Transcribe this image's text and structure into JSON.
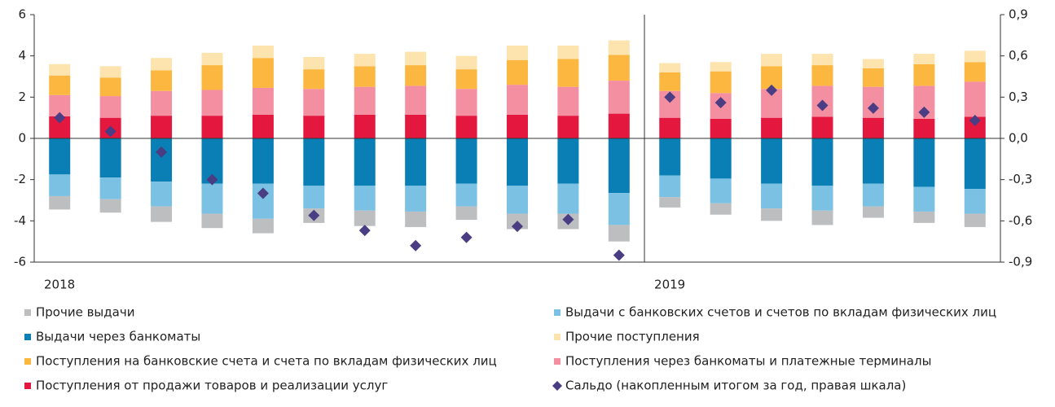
{
  "chart_data": {
    "type": "bar",
    "stacked": true,
    "categories": [
      "2018",
      null,
      null,
      null,
      null,
      null,
      null,
      null,
      null,
      null,
      null,
      null,
      "2019",
      null,
      null,
      null,
      null,
      null,
      null
    ],
    "ylim": [
      -6,
      6
    ],
    "yticks": [
      -6,
      -4,
      -2,
      0,
      2,
      4,
      6
    ],
    "y2lim": [
      -0.9,
      0.9
    ],
    "y2ticks": [
      {
        "value": -0.9,
        "label": "-0,9"
      },
      {
        "value": -0.6,
        "label": "-0,6"
      },
      {
        "value": -0.3,
        "label": "-0,3"
      },
      {
        "value": 0,
        "label": "0,0"
      },
      {
        "value": 0.3,
        "label": "0,3"
      },
      {
        "value": 0.6,
        "label": "0,6"
      },
      {
        "value": 0.9,
        "label": "0,9"
      }
    ],
    "grid": false,
    "series": [
      {
        "name": "Прочие выдачи",
        "color": "#bcbec0",
        "values": [
          -0.65,
          -0.65,
          -0.75,
          -0.7,
          -0.7,
          -0.7,
          -0.75,
          -0.75,
          -0.65,
          -0.75,
          -0.75,
          -0.8,
          -0.5,
          -0.55,
          -0.6,
          -0.7,
          -0.55,
          -0.55,
          -0.65
        ]
      },
      {
        "name": "Выдачи с банковских счетов и счетов по вкладам физических лиц",
        "color": "#7ac1e4",
        "values": [
          -1.05,
          -1.05,
          -1.2,
          -1.45,
          -1.7,
          -1.1,
          -1.2,
          -1.25,
          -1.1,
          -1.35,
          -1.45,
          -1.55,
          -1.05,
          -1.2,
          -1.2,
          -1.2,
          -1.1,
          -1.2,
          -1.2
        ]
      },
      {
        "name": "Выдачи через банкоматы",
        "color": "#0a7fb5",
        "values": [
          -1.75,
          -1.9,
          -2.1,
          -2.2,
          -2.2,
          -2.3,
          -2.3,
          -2.3,
          -2.2,
          -2.3,
          -2.2,
          -2.65,
          -1.8,
          -1.95,
          -2.2,
          -2.3,
          -2.2,
          -2.35,
          -2.45
        ]
      },
      {
        "name": "Прочие поступления",
        "color": "#fde3ad",
        "values": [
          0.55,
          0.55,
          0.6,
          0.6,
          0.6,
          0.6,
          0.6,
          0.65,
          0.65,
          0.7,
          0.65,
          0.7,
          0.45,
          0.45,
          0.6,
          0.55,
          0.45,
          0.5,
          0.55
        ]
      },
      {
        "name": "Поступления на банковские счета и счета по вкладам физических лиц",
        "color": "#fbb73f",
        "values": [
          0.95,
          0.9,
          1.0,
          1.2,
          1.45,
          0.95,
          1.0,
          1.0,
          0.95,
          1.2,
          1.35,
          1.25,
          0.9,
          1.05,
          1.1,
          1.0,
          0.9,
          1.05,
          0.95
        ]
      },
      {
        "name": "Поступления через банкоматы и платежные терминалы",
        "color": "#f48fa1",
        "values": [
          1.03,
          1.05,
          1.2,
          1.25,
          1.3,
          1.3,
          1.35,
          1.4,
          1.3,
          1.45,
          1.4,
          1.6,
          1.3,
          1.25,
          1.4,
          1.5,
          1.5,
          1.6,
          1.7
        ]
      },
      {
        "name": "Поступления от продажи товаров и реализации услуг",
        "color": "#e4173f",
        "values": [
          1.07,
          1.0,
          1.1,
          1.1,
          1.15,
          1.1,
          1.15,
          1.15,
          1.1,
          1.15,
          1.1,
          1.2,
          1.0,
          0.95,
          1.0,
          1.05,
          1.0,
          0.95,
          1.05
        ]
      },
      {
        "name": "Сальдо (накопленным итогом за год, правая шкала)",
        "color": "#4a3d83",
        "type": "scatter",
        "axis": "y2",
        "values": [
          0.15,
          0.05,
          -0.1,
          -0.3,
          -0.4,
          -0.56,
          -0.67,
          -0.78,
          -0.72,
          -0.64,
          -0.59,
          -0.85,
          0.3,
          0.26,
          0.35,
          0.24,
          0.22,
          0.19,
          0.13
        ]
      }
    ]
  }
}
